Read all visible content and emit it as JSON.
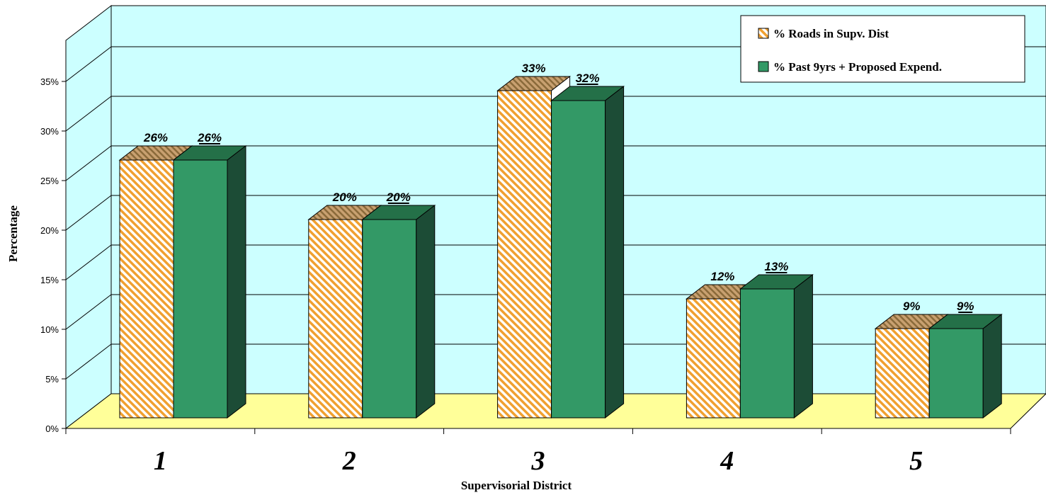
{
  "chart_data": {
    "type": "bar",
    "title": "",
    "xlabel": "Supervisorial District",
    "ylabel": "Percentage",
    "categories": [
      "1",
      "2",
      "3",
      "4",
      "5"
    ],
    "ylim": [
      0,
      35
    ],
    "yticks": [
      "0%",
      "5%",
      "10%",
      "15%",
      "20%",
      "25%",
      "30%",
      "35%"
    ],
    "grid": true,
    "legend_position": "top-right",
    "series": [
      {
        "name": "% Roads in Supv. Dist",
        "values": [
          26,
          20,
          33,
          12,
          9
        ],
        "labels": [
          "26%",
          "20%",
          "33%",
          "12%",
          "9%"
        ],
        "color": "#f0a030",
        "pattern": "diagonal-hatch"
      },
      {
        "name": "% Past 9yrs + Proposed Expend.",
        "values": [
          26,
          20,
          32,
          13,
          9
        ],
        "labels": [
          "26%",
          "20%",
          "32%",
          "13%",
          "9%"
        ],
        "color": "#339966"
      }
    ],
    "colors": {
      "wall": "#ccffff",
      "floor": "#ffff99"
    }
  }
}
